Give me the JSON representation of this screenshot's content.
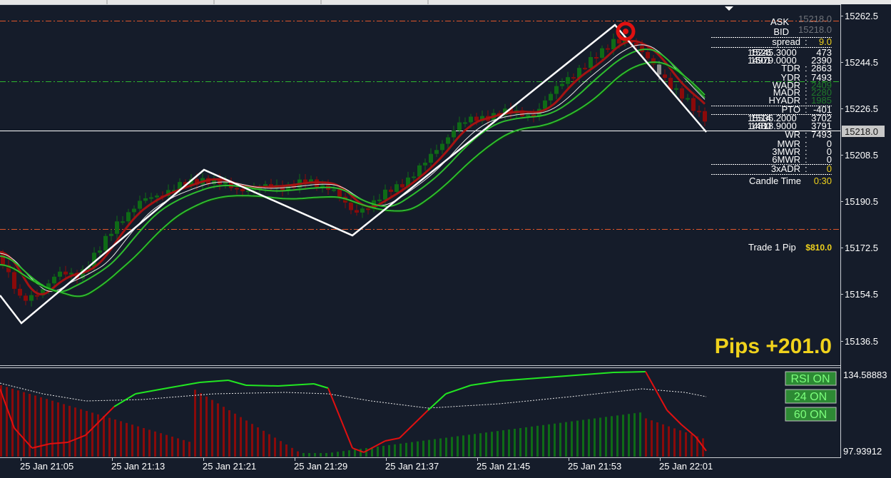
{
  "colors": {
    "background": "#151c2a",
    "grid": "#c8ccd2",
    "bull": "#0e6b16",
    "bear": "#8b0a0a",
    "ma_red": "#a41212",
    "ma_green": "#2ebd2e",
    "zigzag": "#ffffff",
    "ask_line": "#e2572a",
    "mid_line": "#2eb52e",
    "pips_text": "#f0d21c",
    "rsi_up": "#22e622",
    "rsi_down": "#e01010",
    "button_bg": "#2d8a34",
    "button_text": "#7cff7c"
  },
  "price_axis": {
    "ticks": [
      "15262.5",
      "15244.5",
      "15226.5",
      "15208.5",
      "15190.5",
      "15172.5",
      "15154.5",
      "15136.5"
    ],
    "current_price": "15218.0"
  },
  "time_axis": {
    "ticks": [
      "25 Jan 21:05",
      "25 Jan 21:13",
      "25 Jan 21:21",
      "25 Jan 21:29",
      "25 Jan 21:37",
      "25 Jan 21:45",
      "25 Jan 21:53",
      "25 Jan 22:01"
    ]
  },
  "indicator_axis": {
    "top": "134.58883",
    "bottom": "97.93912"
  },
  "info_panel": {
    "ask_label": "ASK",
    "ask_value": "15218.0",
    "bid_label": "BID",
    "bid_value": "15218.0",
    "spread_label": "spread",
    "spread_value": "9.0",
    "stacked_a_value": "473",
    "stacked_b_value": "2390",
    "tdr_label": "TDR",
    "tdr_value": "2863",
    "ydr_label": "YDR",
    "ydr_value": "7493",
    "wadr_label": "WADR",
    "wadr_value": "2409",
    "madr_label": "MADR",
    "madr_value": "2280",
    "hyadr_label": "HYADR",
    "hyadr_value": "1985",
    "pto_label": "PTO",
    "pto_value": "-401",
    "stacked_c_value": "3702",
    "stacked_d_value": "3791",
    "wr_label": "WR",
    "wr_value": "7493",
    "mwr_label": "MWR",
    "mwr_value": "0",
    "mwr3_label": "3MWR",
    "mwr3_value": "0",
    "mwr6_label": "6MWR",
    "mwr6_value": "0",
    "adr3_label": "3xADR",
    "adr3_value": "0",
    "candle_time_label": "Candle Time",
    "candle_time_value": "0:30",
    "trade_label": "Trade 1 Pip",
    "trade_value": "$810.0",
    "pips_text": "Pips +201.0"
  },
  "buttons": {
    "rsi": "RSI ON",
    "b24": "24 ON",
    "b60": "60 ON"
  }
}
